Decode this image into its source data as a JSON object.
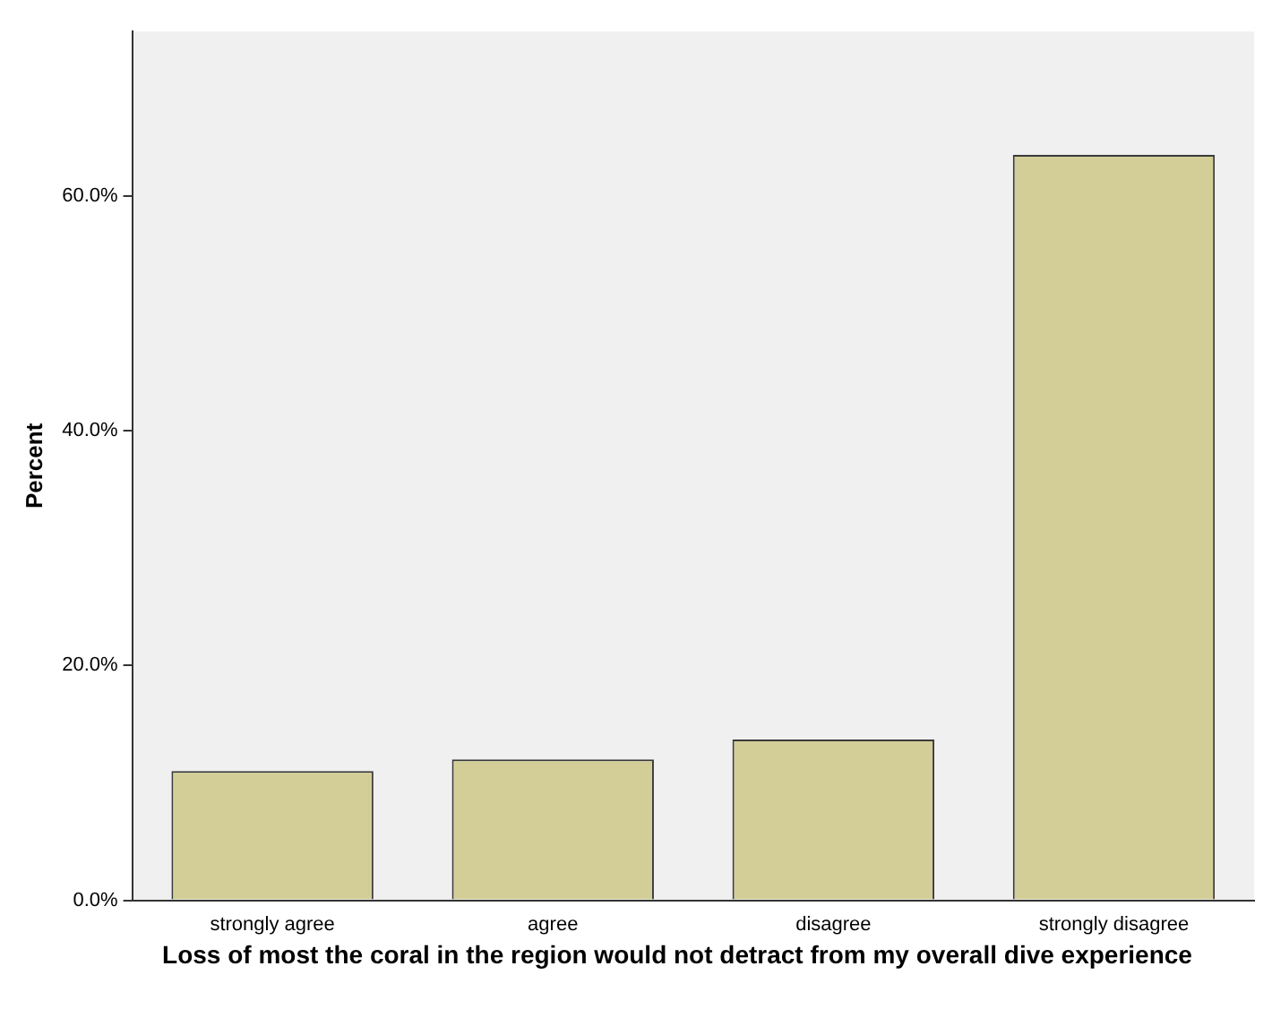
{
  "chart_data": {
    "type": "bar",
    "xlabel": "Loss of most the coral in the region would not detract from my overall dive experience",
    "ylabel": "Percent",
    "categories": [
      "strongly agree",
      "agree",
      "disagree",
      "strongly disagree"
    ],
    "values": [
      11.0,
      12.0,
      13.7,
      63.5
    ],
    "color": "#d3ce97",
    "ylim": [
      0,
      74
    ],
    "yticks": [
      {
        "value": 0,
        "label": "0.0%"
      },
      {
        "value": 20,
        "label": "20.0%"
      },
      {
        "value": 40,
        "label": "40.0%"
      },
      {
        "value": 60,
        "label": "60.0%"
      }
    ],
    "grid": false,
    "legend": false
  }
}
